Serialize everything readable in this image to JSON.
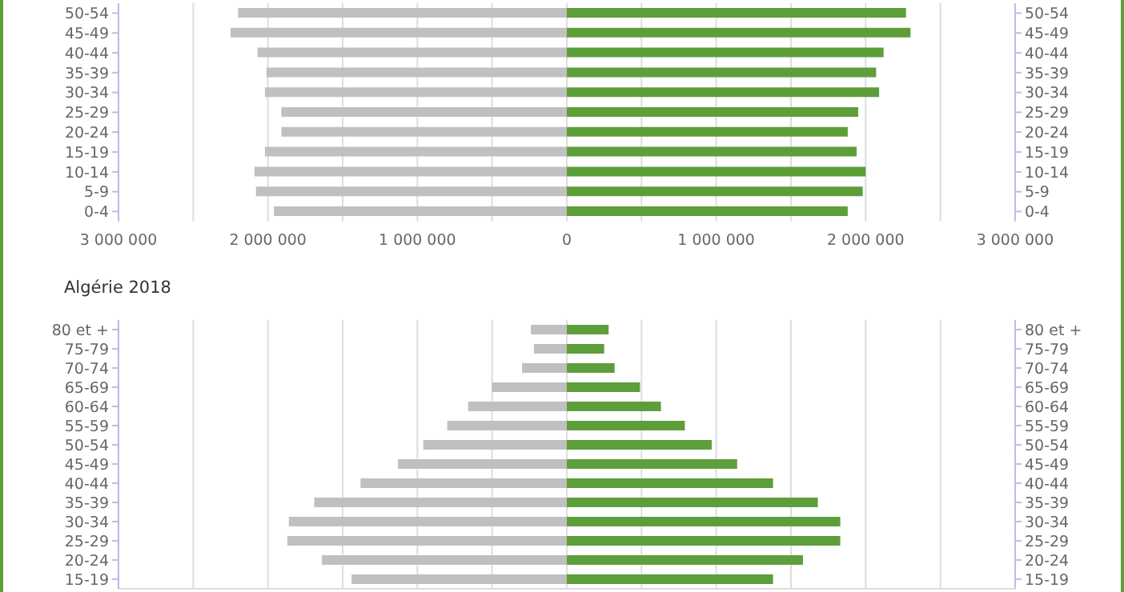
{
  "chart_data": [
    {
      "type": "bar",
      "orientation": "horizontal",
      "stacked": true,
      "categories": [
        "50-54",
        "45-49",
        "40-44",
        "35-39",
        "30-34",
        "25-29",
        "20-24",
        "15-19",
        "10-14",
        "5-9",
        "0-4"
      ],
      "series": [
        {
          "color": "#c0c0c0",
          "values": [
            -2200000,
            -2250000,
            -2070000,
            -2010000,
            -2020000,
            -1910000,
            -1910000,
            -2020000,
            -2090000,
            -2080000,
            -1960000
          ]
        },
        {
          "color": "#5e9e3a",
          "values": [
            2270000,
            2300000,
            2120000,
            2070000,
            2090000,
            1950000,
            1880000,
            1940000,
            2000000,
            1980000,
            1880000
          ]
        }
      ],
      "xlim": [
        -3000000,
        3000000
      ],
      "xticks": [
        {
          "value": -3000000,
          "label": "3 000 000"
        },
        {
          "value": -2500000,
          "label": null
        },
        {
          "value": -2000000,
          "label": "2 000 000"
        },
        {
          "value": -1500000,
          "label": null
        },
        {
          "value": -1000000,
          "label": "1 000 000"
        },
        {
          "value": -500000,
          "label": null
        },
        0,
        {
          "value": 500000,
          "label": null
        },
        {
          "value": 1000000,
          "label": "1 000 000"
        },
        {
          "value": 1500000,
          "label": null
        },
        {
          "value": 2000000,
          "label": "2 000 000"
        },
        {
          "value": 2500000,
          "label": null
        },
        {
          "value": 3000000,
          "label": "3 000 000"
        }
      ],
      "grid": "x"
    },
    {
      "type": "bar",
      "orientation": "horizontal",
      "stacked": true,
      "title": "Algérie 2018",
      "categories": [
        "80 et +",
        "75-79",
        "70-74",
        "65-69",
        "60-64",
        "55-59",
        "50-54",
        "45-49",
        "40-44",
        "35-39",
        "30-34",
        "25-29",
        "20-24",
        "15-19"
      ],
      "series": [
        {
          "color": "#c0c0c0",
          "values": [
            -240000,
            -220000,
            -300000,
            -500000,
            -660000,
            -800000,
            -960000,
            -1130000,
            -1380000,
            -1690000,
            -1860000,
            -1870000,
            -1640000,
            -1440000
          ]
        },
        {
          "color": "#5e9e3a",
          "values": [
            280000,
            250000,
            320000,
            490000,
            630000,
            790000,
            970000,
            1140000,
            1380000,
            1680000,
            1830000,
            1830000,
            1580000,
            1380000
          ]
        }
      ],
      "xlim": [
        -3000000,
        3000000
      ],
      "xticks": [
        {
          "value": -3000000,
          "label": null
        },
        {
          "value": -2500000,
          "label": null
        },
        {
          "value": -2000000,
          "label": null
        },
        {
          "value": -1500000,
          "label": null
        },
        {
          "value": -1000000,
          "label": null
        },
        {
          "value": -500000,
          "label": null
        },
        {
          "value": 0,
          "label": null
        },
        {
          "value": 500000,
          "label": null
        },
        {
          "value": 1000000,
          "label": null
        },
        {
          "value": 1500000,
          "label": null
        },
        {
          "value": 2000000,
          "label": null
        },
        {
          "value": 2500000,
          "label": null
        },
        {
          "value": 3000000,
          "label": null
        }
      ],
      "tick_labels": "y",
      "grid": "x"
    }
  ]
}
